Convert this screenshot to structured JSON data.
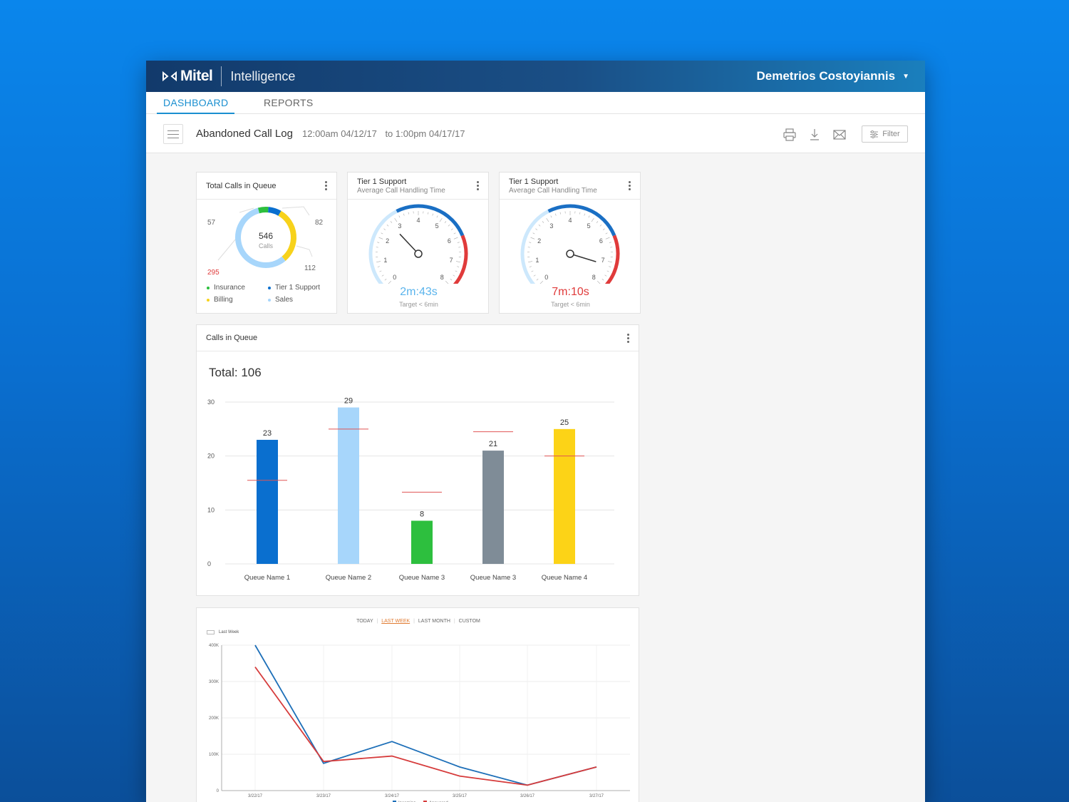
{
  "app": {
    "brand": "Mitel",
    "product": "Intelligence",
    "user": "Demetrios Costoyiannis"
  },
  "tabs": [
    {
      "label": "DASHBOARD",
      "active": true
    },
    {
      "label": "REPORTS",
      "active": false
    }
  ],
  "toolbar": {
    "title": "Abandoned Call Log",
    "range_start": "12:00am 04/12/17",
    "range_end": "to 1:00pm 04/17/17",
    "filter_label": "Filter"
  },
  "colors": {
    "accent": "#1a8fd0",
    "insurance": "#2dbf3e",
    "tier1": "#0a6fcf",
    "billing": "#f7d21b",
    "sales": "#a7d6fb",
    "alert": "#e03b3b"
  },
  "donut_card": {
    "title": "Total Calls in Queue",
    "center_value": "546",
    "center_label": "Calls",
    "callouts": [
      "57",
      "82",
      "112",
      "295"
    ],
    "legend": [
      {
        "label": "Insurance",
        "color": "#2dbf3e"
      },
      {
        "label": "Tier 1 Support",
        "color": "#0a6fcf"
      },
      {
        "label": "Billing",
        "color": "#f7d21b"
      },
      {
        "label": "Sales",
        "color": "#a7d6fb"
      }
    ]
  },
  "gauge_cards": [
    {
      "title": "Tier 1 Support",
      "subtitle": "Average Call Handling Time",
      "value_text": "2m:43s",
      "value_minutes": 2.72,
      "value_color": "#5ab4ec",
      "target": "Target < 6min",
      "ticks": [
        "0",
        "1",
        "2",
        "3",
        "4",
        "5",
        "6",
        "7",
        "8"
      ]
    },
    {
      "title": "Tier 1 Support",
      "subtitle": "Average Call Handling Time",
      "value_text": "7m:10s",
      "value_minutes": 7.17,
      "value_color": "#e03b3b",
      "target": "Target < 6min",
      "ticks": [
        "0",
        "1",
        "2",
        "3",
        "4",
        "5",
        "6",
        "7",
        "8"
      ]
    }
  ],
  "bar_card": {
    "title": "Calls in Queue",
    "total": "Total: 106"
  },
  "line_card": {
    "filters": [
      "TODAY",
      "LAST WEEK",
      "LAST MONTH",
      "CUSTOM"
    ],
    "active_filter": "LAST WEEK",
    "period_label": "Last Week"
  },
  "chart_data": [
    {
      "type": "bar",
      "categories": [
        "Queue Name 1",
        "Queue Name 2",
        "Queue Name 3",
        "Queue Name 3",
        "Queue Name 4"
      ],
      "values": [
        23,
        29,
        8,
        21,
        25
      ],
      "targets": [
        15.5,
        25,
        13.3,
        24.5,
        20
      ],
      "colors": [
        "#0a6fcf",
        "#a7d6fb",
        "#2dbf3e",
        "#7f8c97",
        "#fcd317"
      ],
      "yticks": [
        "0",
        "10",
        "20",
        "30"
      ],
      "ylim": [
        0,
        30
      ],
      "grid": true
    },
    {
      "type": "line",
      "x": [
        "3/22/17",
        "3/23/17",
        "3/24/17",
        "3/25/17",
        "3/26/17",
        "3/27/17"
      ],
      "series": [
        {
          "name": "Incoming",
          "color": "#1d6fb8",
          "values": [
            400000,
            75000,
            135000,
            65000,
            15000,
            65000
          ]
        },
        {
          "name": "Answered",
          "color": "#d63b3b",
          "values": [
            340000,
            80000,
            95000,
            40000,
            15000,
            65000
          ]
        }
      ],
      "yticks": [
        "0",
        "100K",
        "200K",
        "300K",
        "400K"
      ],
      "ylim": [
        0,
        400000
      ],
      "grid": true,
      "legend": "bottom"
    }
  ]
}
